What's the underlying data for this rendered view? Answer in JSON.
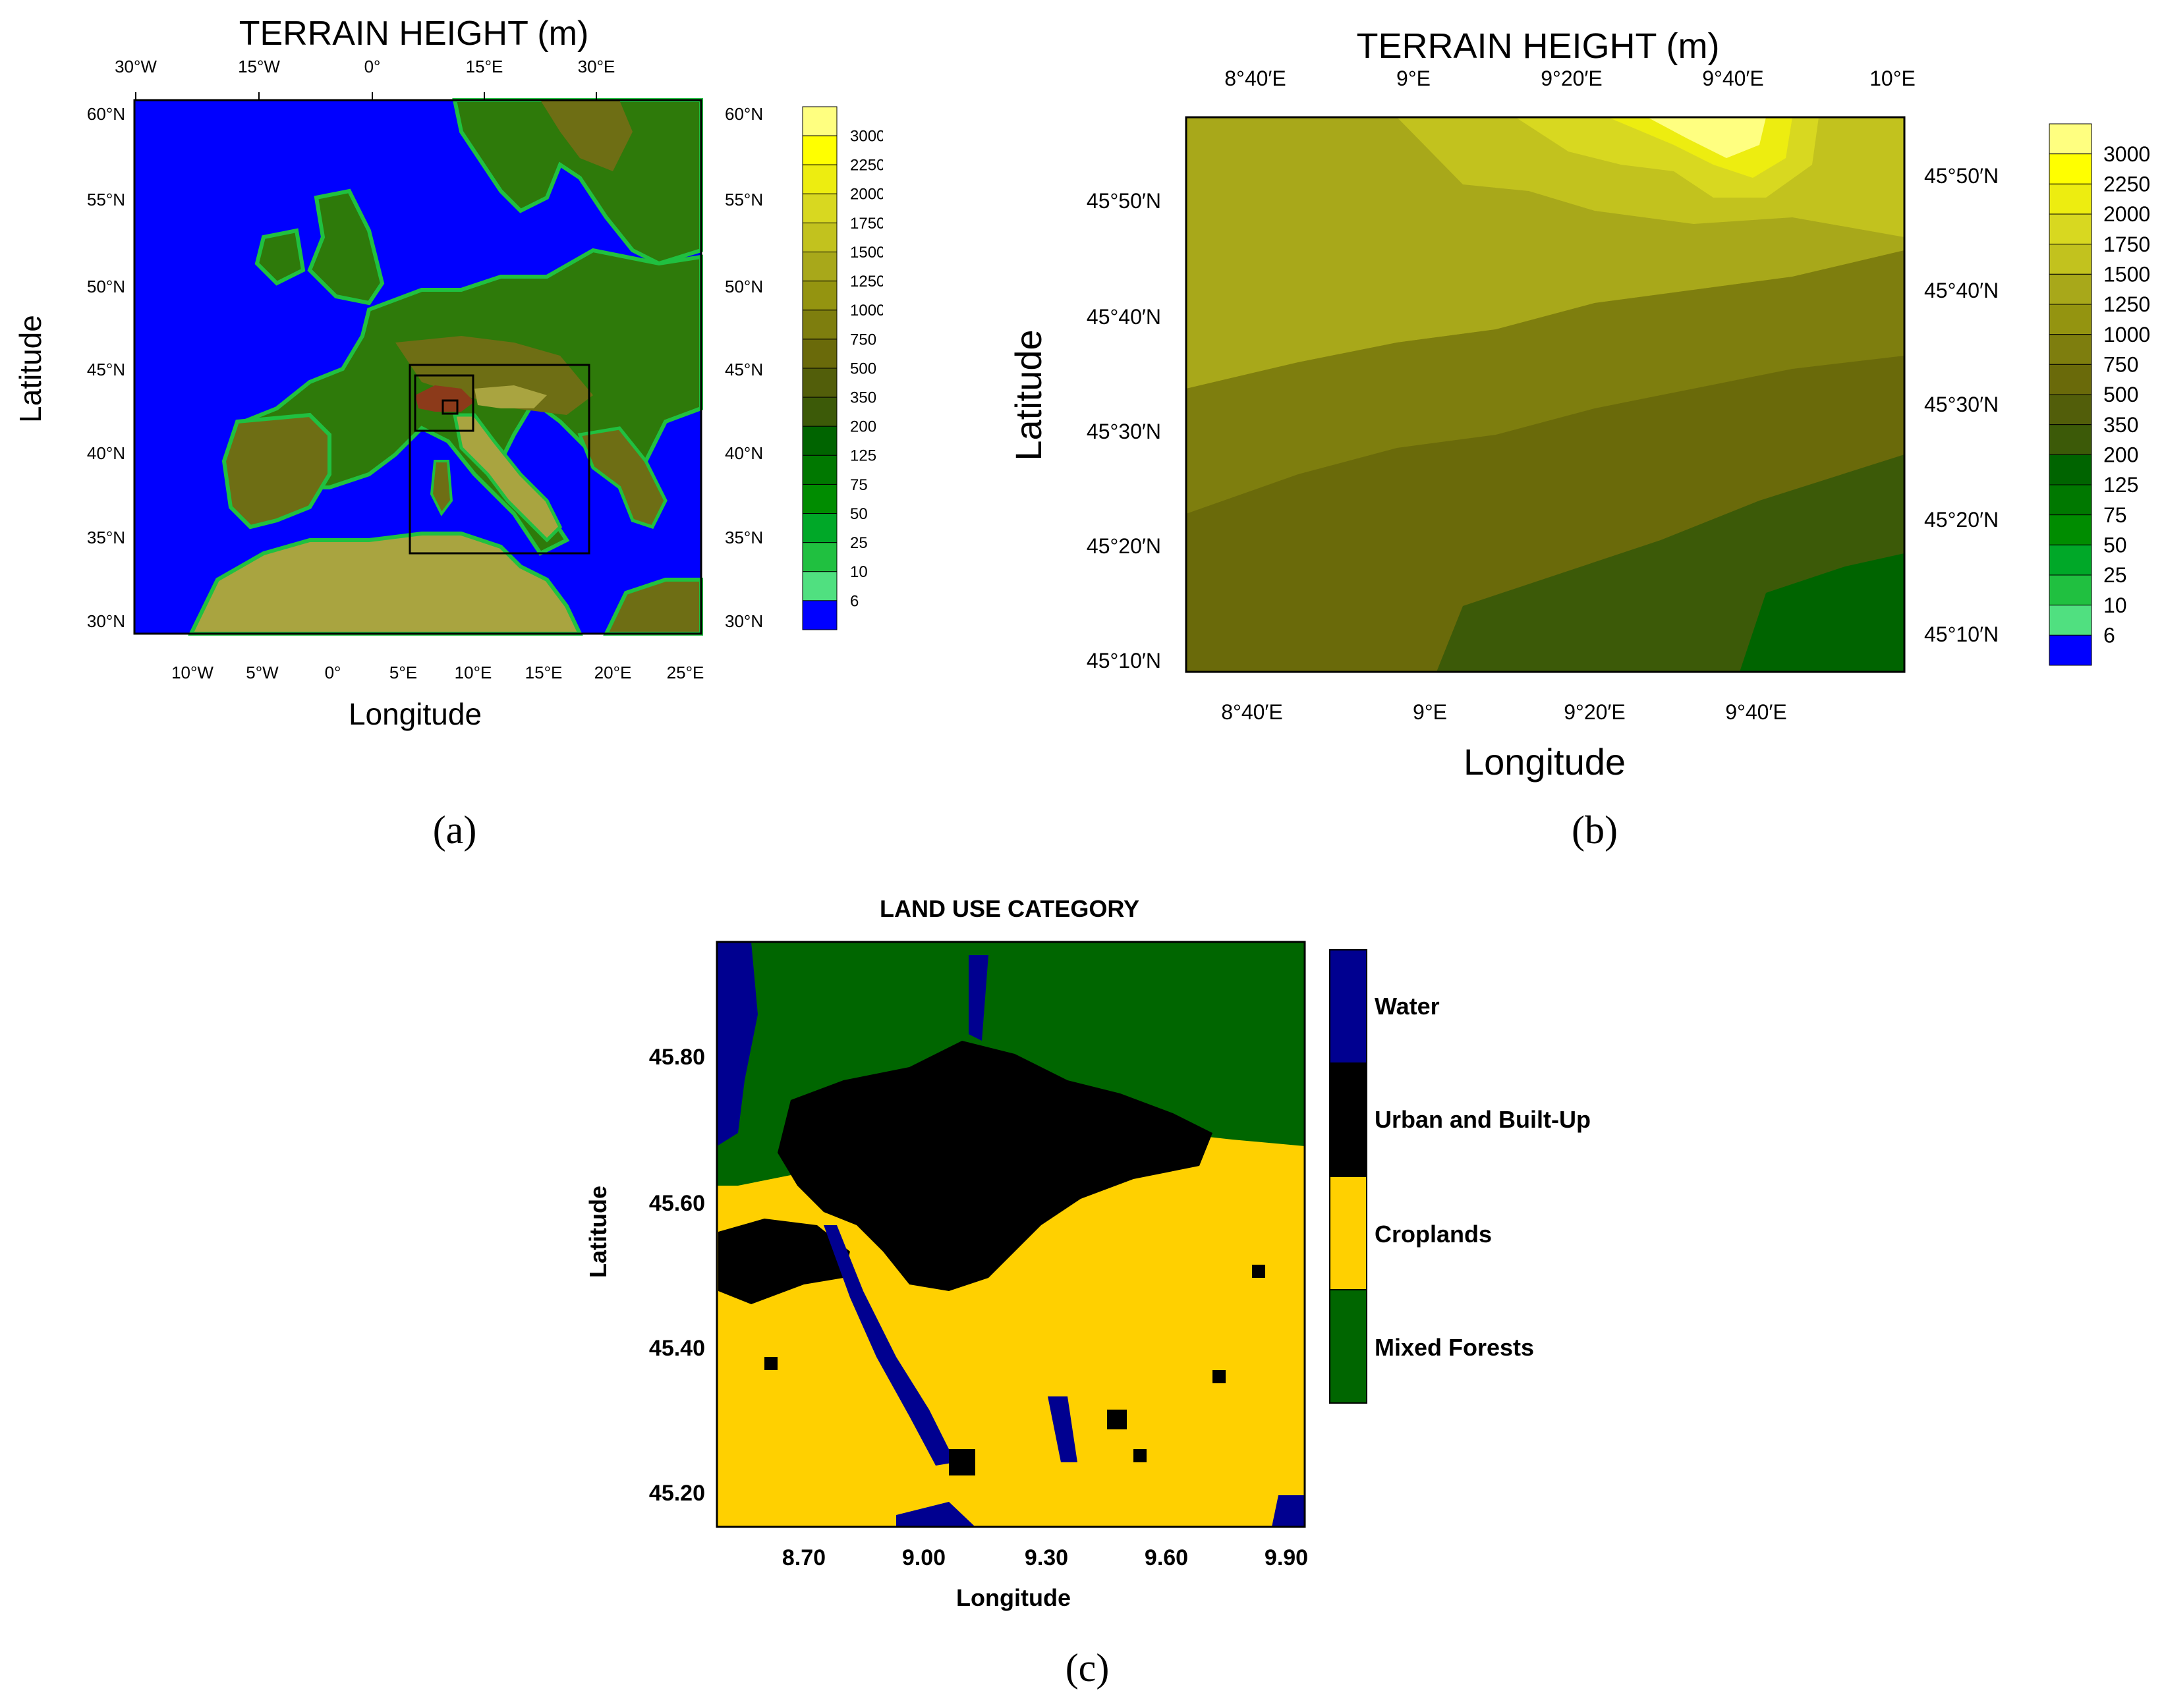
{
  "panel_a": {
    "title": "TERRAIN HEIGHT (m)",
    "xlabel": "Longitude",
    "ylabel": "Latitude",
    "bottom_ticks": [
      "10°W",
      "5°W",
      "0°",
      "5°E",
      "10°E",
      "15°E",
      "20°E",
      "25°E"
    ],
    "top_ticks": [
      "30°W",
      "15°W",
      "0°",
      "15°E",
      "30°E"
    ],
    "lat_ticks": [
      "60°N",
      "55°N",
      "50°N",
      "45°N",
      "40°N",
      "35°N",
      "30°N"
    ],
    "caption": "(a)"
  },
  "panel_b": {
    "title": "TERRAIN HEIGHT (m)",
    "xlabel": "Longitude",
    "ylabel": "Latitude",
    "bottom_ticks": [
      "8°40′E",
      "9°E",
      "9°20′E",
      "9°40′E"
    ],
    "top_ticks": [
      "8°40′E",
      "9°E",
      "9°20′E",
      "9°40′E",
      "10°E"
    ],
    "left_ticks": [
      "45°50′N",
      "45°40′N",
      "45°30′N",
      "45°20′N",
      "45°10′N"
    ],
    "right_ticks": [
      "45°50′N",
      "45°40′N",
      "45°30′N",
      "45°20′N",
      "45°10′N"
    ],
    "caption": "(b)"
  },
  "colorbar": {
    "labels": [
      "3000",
      "2250",
      "2000",
      "1750",
      "1500",
      "1250",
      "1000",
      "750",
      "500",
      "350",
      "200",
      "125",
      "75",
      "50",
      "25",
      "10",
      "6"
    ],
    "colors": [
      "#FFFF80",
      "#FFFF00",
      "#EDED10",
      "#D8D820",
      "#C2C21E",
      "#A8A81A",
      "#949410",
      "#7E7E0E",
      "#6A6A0A",
      "#525E0A",
      "#3C5A08",
      "#006400",
      "#007800",
      "#008C00",
      "#00A828",
      "#20C040",
      "#50E080",
      "#0000FF"
    ]
  },
  "panel_c": {
    "title": "LAND USE CATEGORY",
    "xlabel": "Longitude",
    "ylabel": "Latitude",
    "x_ticks": [
      "8.70",
      "9.00",
      "9.30",
      "9.60",
      "9.90"
    ],
    "y_ticks": [
      "45.80",
      "45.60",
      "45.40",
      "45.20"
    ],
    "legend": [
      {
        "label": "Water",
        "color": "#000090"
      },
      {
        "label": "Urban and Built-Up",
        "color": "#000000"
      },
      {
        "label": "Croplands",
        "color": "#FFD000"
      },
      {
        "label": "Mixed Forests",
        "color": "#006600"
      }
    ],
    "caption": "(c)"
  },
  "map_colors": {
    "sea": "#0000FF",
    "coast": "#20C040",
    "low": "#2E7A0A",
    "mid": "#6E6E14",
    "high": "#A9A440",
    "alps": "#8C3A1A",
    "box": "#000000"
  }
}
